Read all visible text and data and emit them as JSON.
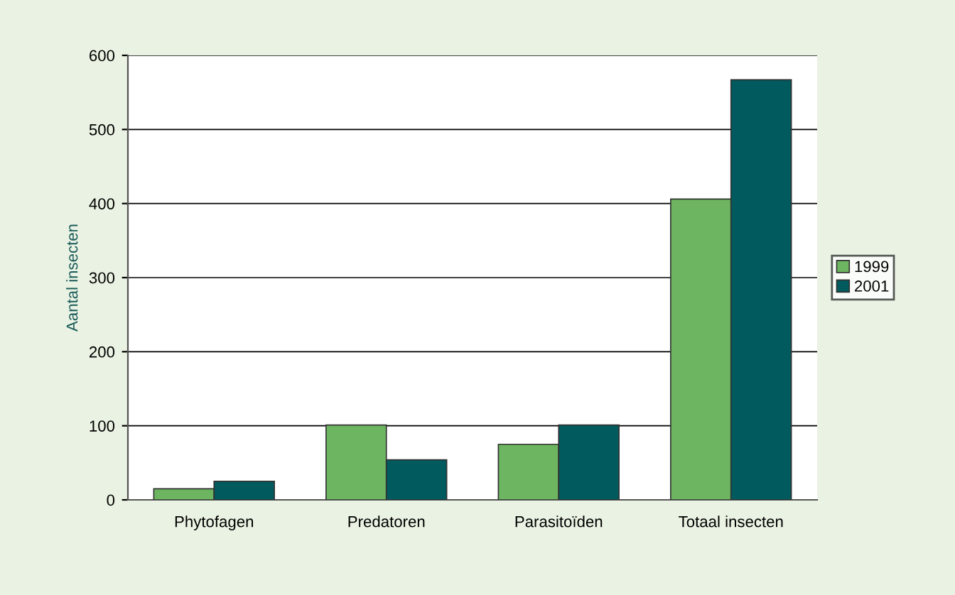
{
  "chart_data": {
    "type": "bar",
    "ylabel": "Aantal insecten",
    "categories": [
      "Phytofagen",
      "Predatoren",
      "Parasitoïden",
      "Totaal insecten"
    ],
    "series": [
      {
        "name": "1999",
        "color": "#6db560",
        "values": [
          15,
          101,
          75,
          406
        ]
      },
      {
        "name": "2001",
        "color": "#005a5e",
        "values": [
          25,
          54,
          101,
          567
        ]
      }
    ],
    "ylim": [
      0,
      600
    ],
    "yticks": [
      0,
      100,
      200,
      300,
      400,
      500,
      600
    ],
    "grid": "y",
    "legend": "right"
  }
}
